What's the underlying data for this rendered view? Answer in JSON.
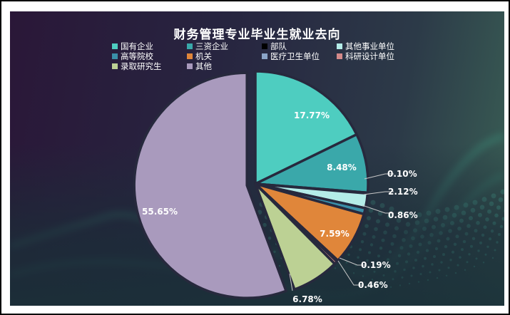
{
  "title": "财务管理专业毕业生就业去向",
  "legend": [
    {
      "label": "国有企业",
      "color": "#4ecdc0"
    },
    {
      "label": "三资企业",
      "color": "#3aa8aa"
    },
    {
      "label": "部队",
      "color": "#000000"
    },
    {
      "label": "其他事业单位",
      "color": "#b4ece8"
    },
    {
      "label": "高等院校",
      "color": "#3a8fa8"
    },
    {
      "label": "机关",
      "color": "#e0863a"
    },
    {
      "label": "医疗卫生单位",
      "color": "#8aa4c8"
    },
    {
      "label": "科研设计单位",
      "color": "#d48a8a"
    },
    {
      "label": "录取研究生",
      "color": "#bcd194"
    },
    {
      "label": "其他",
      "color": "#a99abd"
    }
  ],
  "chart_data": {
    "type": "pie",
    "title": "财务管理专业毕业生就业去向",
    "categories": [
      "国有企业",
      "三资企业",
      "部队",
      "其他事业单位",
      "高等院校",
      "机关",
      "医疗卫生单位",
      "科研设计单位",
      "录取研究生",
      "其他"
    ],
    "values": [
      17.77,
      8.48,
      0.1,
      2.12,
      0.86,
      7.59,
      0.19,
      0.46,
      6.78,
      55.65
    ],
    "labels": [
      "17.77%",
      "8.48%",
      "0.10%",
      "2.12%",
      "0.86%",
      "7.59%",
      "0.19%",
      "0.46%",
      "6.78%",
      "55.65%"
    ],
    "colors": [
      "#4ecdc0",
      "#3aa8aa",
      "#000000",
      "#b4ece8",
      "#3a8fa8",
      "#e0863a",
      "#8aa4c8",
      "#d48a8a",
      "#bcd194",
      "#a99abd"
    ],
    "exploded": [
      "其他"
    ],
    "legend_position": "top",
    "start_angle": "12 o'clock, clockwise"
  }
}
